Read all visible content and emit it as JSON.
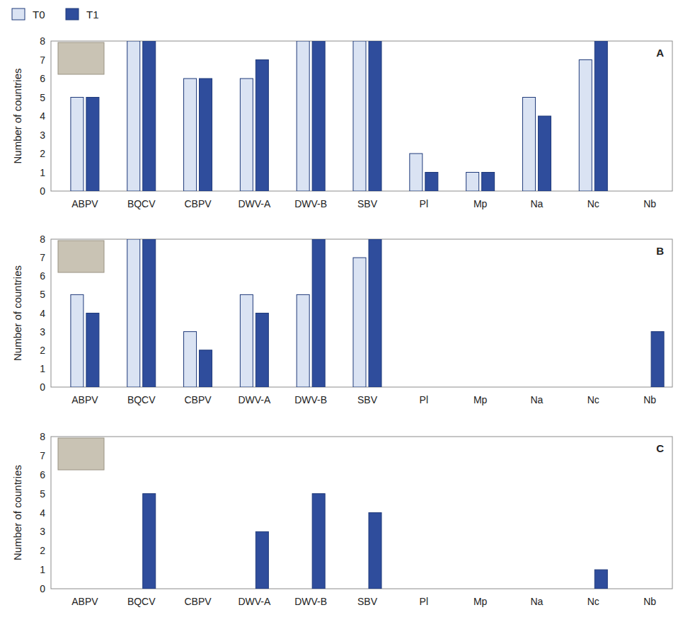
{
  "chart_data": [
    {
      "type": "bar",
      "title": "A",
      "y_label": "Number of countries",
      "categories": [
        "ABPV",
        "BQCV",
        "CBPV",
        "DWV-A",
        "DWV-B",
        "SBV",
        "Pl",
        "Mp",
        "Na",
        "Nc",
        "Nb"
      ],
      "series": [
        {
          "name": "T0",
          "color": "#dae3f3",
          "values": [
            5,
            8,
            6,
            6,
            8,
            8,
            2,
            1,
            5,
            7,
            0
          ]
        },
        {
          "name": "T1",
          "color": "#2f4d9c",
          "values": [
            5,
            8,
            6,
            7,
            8,
            8,
            1,
            1,
            4,
            8,
            0
          ]
        }
      ],
      "ylim": [
        0,
        8
      ],
      "yticks": [
        0,
        1,
        2,
        3,
        4,
        5,
        6,
        7,
        8
      ],
      "grid": false,
      "legend": "top-left"
    },
    {
      "type": "bar",
      "title": "B",
      "y_label": "Number of countries",
      "categories": [
        "ABPV",
        "BQCV",
        "CBPV",
        "DWV-A",
        "DWV-B",
        "SBV",
        "Pl",
        "Mp",
        "Na",
        "Nc",
        "Nb"
      ],
      "series": [
        {
          "name": "T0",
          "color": "#dae3f3",
          "values": [
            5,
            8,
            3,
            5,
            5,
            7,
            0,
            0,
            0,
            0,
            0
          ]
        },
        {
          "name": "T1",
          "color": "#2f4d9c",
          "values": [
            4,
            8,
            2,
            4,
            8,
            8,
            0,
            0,
            0,
            0,
            3
          ]
        }
      ],
      "ylim": [
        0,
        8
      ],
      "yticks": [
        0,
        1,
        2,
        3,
        4,
        5,
        6,
        7,
        8
      ],
      "grid": false
    },
    {
      "type": "bar",
      "title": "C",
      "y_label": "Number of countries",
      "categories": [
        "ABPV",
        "BQCV",
        "CBPV",
        "DWV-A",
        "DWV-B",
        "SBV",
        "Pl",
        "Mp",
        "Na",
        "Nc",
        "Nb"
      ],
      "series": [
        {
          "name": "T0",
          "color": "#dae3f3",
          "values": [
            0,
            0,
            0,
            0,
            0,
            0,
            0,
            0,
            0,
            0,
            0
          ]
        },
        {
          "name": "T1",
          "color": "#2f4d9c",
          "values": [
            0,
            5,
            0,
            3,
            5,
            4,
            0,
            0,
            0,
            1,
            0
          ]
        }
      ],
      "ylim": [
        0,
        8
      ],
      "yticks": [
        0,
        1,
        2,
        3,
        4,
        5,
        6,
        7,
        8
      ],
      "grid": false
    }
  ]
}
